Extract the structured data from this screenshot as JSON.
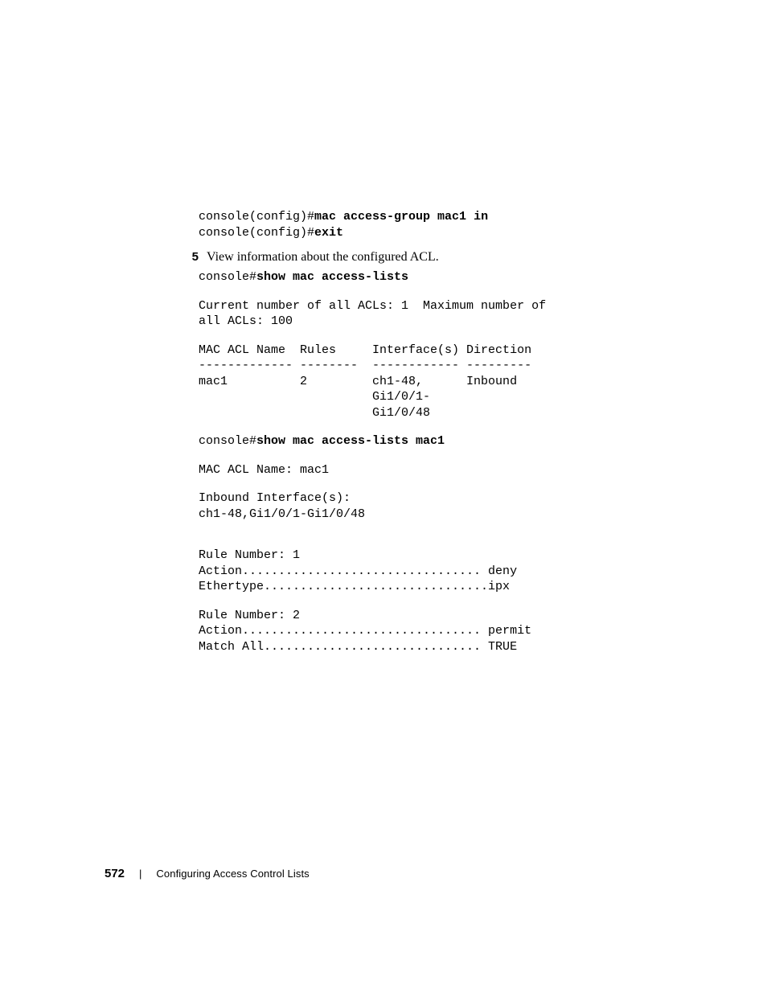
{
  "cli": {
    "line1_prefix": "console(config)#",
    "line1_cmd": "mac access-group mac1 in",
    "line2_prefix": "console(config)#",
    "line2_cmd": "exit",
    "show_prefix": "console#",
    "show_cmd": "show mac access-lists",
    "summary_l1": "Current number of all ACLs: 1  Maximum number of ",
    "summary_l2": "all ACLs: 100",
    "tbl_header": "MAC ACL Name  Rules     Interface(s) Direction",
    "tbl_divider": "------------- --------  ------------ ---------",
    "tbl_r1": "mac1          2         ch1-48,      Inbound",
    "tbl_r2": "                        Gi1/0/1-",
    "tbl_r3": "                        Gi1/0/48",
    "show2_prefix": "console#",
    "show2_cmd": "show mac access-lists mac1",
    "detail_name": "MAC ACL Name: mac1",
    "detail_if1": "Inbound Interface(s):",
    "detail_if2": "ch1-48,Gi1/0/1-Gi1/0/48",
    "rule1_num": "Rule Number: 1",
    "rule1_action": "Action................................. deny",
    "rule1_eth": "Ethertype...............................ipx",
    "rule2_num": "Rule Number: 2",
    "rule2_action": "Action................................. permit",
    "rule2_match": "Match All.............................. TRUE"
  },
  "step": {
    "num": "5",
    "text": "View information about the configured ACL."
  },
  "footer": {
    "page": "572",
    "sep": "|",
    "title": "Configuring Access Control Lists"
  },
  "style": {
    "mono_fontsize": 15,
    "body_fontsize": 16,
    "footer_fontsize": 13,
    "text_color": "#000000",
    "bg_color": "#ffffff"
  }
}
